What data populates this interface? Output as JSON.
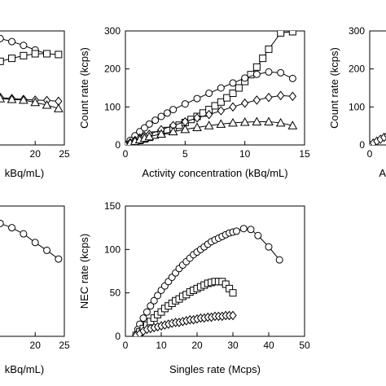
{
  "chart_data": [
    {
      "id": "top-left",
      "type": "line",
      "xlabel": "kBq/mL)",
      "ylabel": "",
      "xlim": [
        0,
        25
      ],
      "ylim": [
        0,
        300
      ],
      "xticks": [
        20,
        25
      ],
      "xtick_labels": [
        "20",
        "25"
      ],
      "yticks": [],
      "grid": false,
      "series": [
        {
          "marker": "circle",
          "x": [
            14,
            16,
            18,
            20,
            22
          ],
          "y": [
            280,
            272,
            262,
            250,
            240
          ]
        },
        {
          "marker": "square",
          "x": [
            14,
            16,
            18,
            20,
            22,
            24
          ],
          "y": [
            220,
            228,
            235,
            240,
            240,
            238
          ]
        },
        {
          "marker": "diamond",
          "x": [
            14,
            16,
            18,
            20,
            22,
            24
          ],
          "y": [
            125,
            122,
            120,
            118,
            117,
            115
          ]
        },
        {
          "marker": "triangle",
          "x": [
            14,
            16,
            18,
            20,
            22,
            24
          ],
          "y": [
            122,
            120,
            118,
            112,
            105,
            96
          ]
        }
      ]
    },
    {
      "id": "top-middle",
      "type": "line",
      "xlabel": "Activity concentration (kBq/mL)",
      "ylabel": "Count rate (kcps)",
      "xlim": [
        0,
        15
      ],
      "ylim": [
        0,
        300
      ],
      "xticks": [
        0,
        5,
        10,
        15
      ],
      "xtick_labels": [
        "0",
        "5",
        "10",
        "15"
      ],
      "yticks": [
        0,
        100,
        200,
        300
      ],
      "ytick_labels": [
        "0",
        "100",
        "200",
        "300"
      ],
      "grid": false,
      "series": [
        {
          "marker": "square",
          "x": [
            0,
            0.4,
            0.8,
            1.2,
            1.6,
            2,
            2.5,
            3,
            3.5,
            4,
            4.5,
            5,
            5.5,
            6,
            6.5,
            7,
            7.5,
            8,
            8.5,
            9,
            9.5,
            10,
            10.5,
            11,
            11.5,
            12,
            13,
            14
          ],
          "y": [
            0,
            4,
            8,
            12,
            16,
            20,
            26,
            32,
            38,
            45,
            52,
            59,
            67,
            75,
            84,
            93,
            103,
            113,
            124,
            136,
            150,
            167,
            185,
            205,
            228,
            252,
            295,
            298
          ]
        },
        {
          "marker": "circle",
          "x": [
            0,
            0.4,
            0.8,
            1.2,
            1.6,
            2,
            2.5,
            3,
            3.5,
            4,
            5,
            6,
            7,
            8,
            9,
            10,
            11,
            12,
            13,
            14
          ],
          "y": [
            0,
            12,
            24,
            35,
            45,
            55,
            65,
            75,
            84,
            93,
            108,
            122,
            136,
            150,
            163,
            176,
            186,
            192,
            190,
            175
          ]
        },
        {
          "marker": "diamond",
          "x": [
            0,
            0.4,
            0.8,
            1.2,
            1.6,
            2,
            3,
            4,
            5,
            6,
            7,
            8,
            9,
            10,
            11,
            12,
            13,
            14
          ],
          "y": [
            0,
            6,
            12,
            18,
            23,
            28,
            40,
            51,
            61,
            71,
            80,
            90,
            100,
            110,
            118,
            125,
            130,
            128
          ]
        },
        {
          "marker": "triangle",
          "x": [
            0,
            0.4,
            0.8,
            1.2,
            1.6,
            2,
            3,
            4,
            5,
            6,
            7,
            8,
            9,
            10,
            11,
            12,
            13,
            14
          ],
          "y": [
            0,
            5,
            10,
            14,
            18,
            22,
            29,
            35,
            41,
            46,
            51,
            55,
            58,
            60,
            61,
            61,
            58,
            51
          ]
        }
      ]
    },
    {
      "id": "top-right",
      "type": "line",
      "xlabel": "A",
      "ylabel": "Count rate (kcps)",
      "xlim": [
        0,
        15
      ],
      "ylim": [
        0,
        300
      ],
      "xticks": [
        0
      ],
      "xtick_labels": [
        "0"
      ],
      "yticks": [
        0,
        100,
        200,
        300
      ],
      "ytick_labels": [
        "0",
        "100",
        "200",
        "300"
      ],
      "grid": false,
      "series": [
        {
          "marker": "diamond",
          "x": [
            0,
            0.3,
            0.6,
            0.9,
            1.2,
            1.5,
            1.8,
            2.1,
            2.4
          ],
          "y": [
            0,
            5,
            10,
            15,
            20,
            25,
            30,
            35,
            40
          ]
        }
      ]
    },
    {
      "id": "bottom-left",
      "type": "line",
      "xlabel": "kBq/mL)",
      "ylabel": "",
      "xlim": [
        0,
        25
      ],
      "ylim": [
        0,
        150
      ],
      "xticks": [
        20,
        25
      ],
      "xtick_labels": [
        "20",
        "25"
      ],
      "yticks": [],
      "grid": false,
      "series": [
        {
          "marker": "circle",
          "x": [
            14,
            16,
            18,
            20,
            22,
            24
          ],
          "y": [
            130,
            125,
            118,
            108,
            99,
            89
          ]
        }
      ]
    },
    {
      "id": "bottom-middle",
      "type": "line",
      "xlabel": "Singles rate (Mcps)",
      "ylabel": "NEC rate (kcps)",
      "xlim": [
        0,
        50
      ],
      "ylim": [
        0,
        150
      ],
      "xticks": [
        0,
        10,
        20,
        30,
        40,
        50
      ],
      "xtick_labels": [
        "0",
        "10",
        "20",
        "30",
        "40",
        "50"
      ],
      "yticks": [
        0,
        50,
        100,
        150
      ],
      "ytick_labels": [
        "0",
        "50",
        "100",
        "150"
      ],
      "grid": false,
      "series": [
        {
          "marker": "circle",
          "x": [
            3,
            3.5,
            4,
            5,
            6,
            7,
            8,
            9,
            10,
            11,
            12,
            13,
            14,
            15,
            16,
            17,
            18,
            19,
            20,
            21,
            22,
            23,
            24,
            25,
            26,
            27,
            28,
            29,
            30,
            31,
            33,
            35,
            37,
            40,
            43
          ],
          "y": [
            2,
            8,
            14,
            21,
            28,
            35,
            41,
            47,
            53,
            58,
            63,
            68,
            73,
            78,
            82,
            86,
            90,
            94,
            97,
            100,
            103,
            106,
            109,
            111,
            113,
            115,
            117,
            119,
            120,
            121,
            124,
            123,
            116,
            103,
            88
          ]
        },
        {
          "marker": "square",
          "x": [
            3,
            4,
            5,
            6,
            7,
            8,
            9,
            10,
            11,
            12,
            13,
            14,
            15,
            16,
            17,
            18,
            19,
            20,
            21,
            22,
            23,
            24,
            25,
            26,
            27,
            28,
            29,
            30
          ],
          "y": [
            1,
            5,
            9,
            13,
            17,
            21,
            25,
            28,
            32,
            35,
            38,
            41,
            43,
            46,
            48,
            51,
            53,
            55,
            57,
            59,
            61,
            62,
            63,
            63,
            63,
            60,
            55,
            50
          ]
        },
        {
          "marker": "diamond",
          "x": [
            3,
            4,
            5,
            6,
            7,
            8,
            9,
            10,
            11,
            12,
            13,
            14,
            15,
            16,
            17,
            18,
            19,
            20,
            21,
            22,
            23,
            24,
            25,
            26,
            27,
            28,
            29,
            30
          ],
          "y": [
            1,
            3,
            6,
            8,
            9,
            10,
            11,
            12,
            13,
            14,
            15,
            16,
            16,
            17,
            18,
            19,
            19,
            20,
            21,
            21,
            22,
            22,
            23,
            23,
            23,
            24,
            24,
            24
          ]
        }
      ]
    }
  ]
}
